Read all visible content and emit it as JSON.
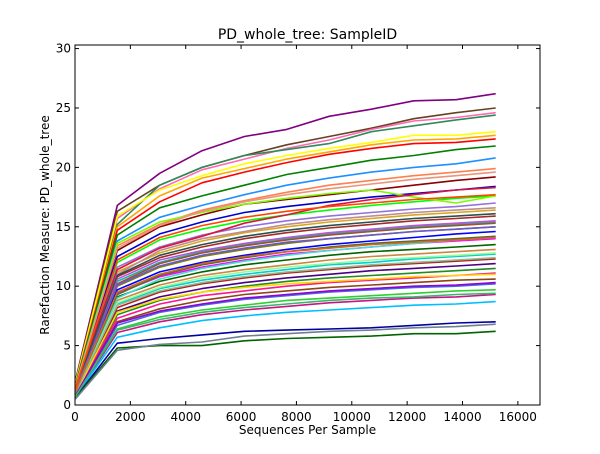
{
  "chart_data": {
    "type": "line",
    "title": "PD_whole_tree: SampleID",
    "xlabel": "Sequences Per Sample",
    "ylabel": "Rarefaction Measure: PD_whole_tree",
    "xlim": [
      0,
      16800
    ],
    "ylim": [
      0,
      30.3
    ],
    "xticks": [
      0,
      2000,
      4000,
      6000,
      8000,
      10000,
      12000,
      14000,
      16000
    ],
    "yticks": [
      0,
      5,
      10,
      15,
      20,
      25,
      30
    ],
    "grid": false,
    "legend": "none",
    "x": [
      10,
      1530,
      3060,
      4590,
      6120,
      7650,
      9180,
      10710,
      12240,
      13770,
      15200
    ],
    "series": [
      {
        "color": "#800080",
        "values": [
          2.0,
          16.8,
          19.5,
          21.4,
          22.6,
          23.2,
          24.3,
          24.9,
          25.6,
          25.7,
          26.2
        ]
      },
      {
        "color": "#654321",
        "values": [
          1.9,
          16.3,
          18.5,
          20.0,
          21.0,
          21.9,
          22.6,
          23.3,
          24.1,
          24.6,
          25.0
        ]
      },
      {
        "color": "#ff69b4",
        "values": [
          1.8,
          15.7,
          18.2,
          19.8,
          20.7,
          21.6,
          22.3,
          23.2,
          23.9,
          24.2,
          24.6
        ]
      },
      {
        "color": "#2e8b57",
        "values": [
          1.9,
          15.2,
          18.5,
          20.0,
          21.0,
          21.5,
          22.0,
          23.0,
          23.5,
          24.0,
          24.4
        ]
      },
      {
        "color": "#ffff00",
        "values": [
          1.8,
          15.9,
          18.1,
          19.3,
          20.3,
          21.0,
          21.6,
          22.1,
          22.7,
          22.7,
          23.0
        ]
      },
      {
        "color": "#ffa500",
        "values": [
          1.7,
          15.0,
          17.6,
          19.1,
          19.9,
          20.7,
          21.3,
          21.9,
          22.3,
          22.4,
          22.7
        ]
      },
      {
        "color": "#ff0000",
        "values": [
          1.6,
          14.7,
          17.1,
          18.7,
          19.6,
          20.4,
          21.1,
          21.6,
          22.0,
          22.1,
          22.4
        ]
      },
      {
        "color": "#008000",
        "values": [
          1.6,
          14.3,
          16.6,
          17.6,
          18.5,
          19.4,
          20.0,
          20.6,
          21.0,
          21.5,
          21.8
        ]
      },
      {
        "color": "#1e90ff",
        "values": [
          1.5,
          13.8,
          15.8,
          16.8,
          17.7,
          18.5,
          19.1,
          19.6,
          20.0,
          20.3,
          20.8
        ]
      },
      {
        "color": "#ff7f50",
        "values": [
          1.5,
          13.4,
          15.2,
          16.4,
          17.2,
          17.9,
          18.5,
          18.9,
          19.3,
          19.6,
          19.9
        ]
      },
      {
        "color": "#8b0000",
        "values": [
          1.4,
          13.0,
          15.0,
          16.0,
          16.9,
          17.3,
          17.7,
          18.1,
          18.5,
          18.9,
          19.2
        ]
      },
      {
        "color": "#0000cd",
        "values": [
          1.4,
          12.5,
          14.4,
          15.4,
          16.2,
          16.7,
          17.1,
          17.5,
          17.8,
          18.1,
          18.4
        ]
      },
      {
        "color": "#00ff00",
        "values": [
          1.4,
          12.0,
          13.9,
          14.8,
          15.5,
          16.0,
          16.4,
          16.8,
          17.1,
          17.4,
          17.6
        ]
      },
      {
        "color": "#9370db",
        "values": [
          1.3,
          11.6,
          13.3,
          14.3,
          15.0,
          15.5,
          15.9,
          16.2,
          16.5,
          16.7,
          17.0
        ]
      },
      {
        "color": "#daa520",
        "values": [
          1.3,
          11.2,
          12.8,
          13.8,
          14.5,
          15.0,
          15.4,
          15.7,
          16.0,
          16.2,
          16.4
        ]
      },
      {
        "color": "#a52a2a",
        "values": [
          1.2,
          10.8,
          12.4,
          13.3,
          14.0,
          14.5,
          14.9,
          15.2,
          15.5,
          15.7,
          15.9
        ]
      },
      {
        "color": "#20b2aa",
        "values": [
          1.2,
          10.4,
          12.0,
          12.9,
          13.5,
          14.0,
          14.4,
          14.7,
          15.0,
          15.2,
          15.4
        ]
      },
      {
        "color": "#808000",
        "values": [
          1.2,
          10.0,
          11.6,
          12.5,
          13.1,
          13.6,
          14.0,
          14.3,
          14.6,
          14.8,
          15.0
        ]
      },
      {
        "color": "#0000ff",
        "values": [
          1.1,
          9.7,
          11.2,
          12.0,
          12.6,
          13.1,
          13.5,
          13.8,
          14.1,
          14.4,
          14.6
        ]
      },
      {
        "color": "#ff00ff",
        "values": [
          1.1,
          9.4,
          10.8,
          11.6,
          12.2,
          12.7,
          13.0,
          13.3,
          13.6,
          13.8,
          14.0
        ]
      },
      {
        "color": "#006400",
        "values": [
          1.1,
          9.1,
          10.4,
          11.2,
          11.8,
          12.2,
          12.6,
          12.9,
          13.1,
          13.3,
          13.5
        ]
      },
      {
        "color": "#cd853f",
        "values": [
          1.0,
          8.8,
          10.1,
          10.9,
          11.4,
          11.8,
          12.2,
          12.5,
          12.7,
          12.9,
          13.1
        ]
      },
      {
        "color": "#00ced1",
        "values": [
          1.0,
          8.5,
          9.8,
          10.5,
          11.0,
          11.4,
          11.8,
          12.0,
          12.3,
          12.5,
          12.7
        ]
      },
      {
        "color": "#b22222",
        "values": [
          1.0,
          8.2,
          9.5,
          10.2,
          10.7,
          11.1,
          11.4,
          11.7,
          11.9,
          12.1,
          12.3
        ]
      },
      {
        "color": "#4b0082",
        "values": [
          0.9,
          7.9,
          9.1,
          9.8,
          10.3,
          10.7,
          11.0,
          11.3,
          11.5,
          11.7,
          11.9
        ]
      },
      {
        "color": "#228b22",
        "values": [
          0.9,
          7.6,
          8.8,
          9.5,
          10.0,
          10.4,
          10.7,
          10.9,
          11.1,
          11.3,
          11.5
        ]
      },
      {
        "color": "#ff1493",
        "values": [
          0.9,
          7.3,
          8.5,
          9.2,
          9.6,
          10.0,
          10.3,
          10.5,
          10.7,
          10.9,
          11.1
        ]
      },
      {
        "color": "#8b4513",
        "values": [
          0.8,
          7.0,
          8.1,
          8.8,
          9.3,
          9.6,
          9.9,
          10.1,
          10.3,
          10.5,
          10.6
        ]
      },
      {
        "color": "#4169e1",
        "values": [
          0.8,
          6.7,
          7.8,
          8.4,
          8.9,
          9.2,
          9.5,
          9.7,
          9.9,
          10.0,
          10.2
        ]
      },
      {
        "color": "#32cd32",
        "values": [
          0.8,
          6.4,
          7.4,
          8.0,
          8.4,
          8.8,
          9.0,
          9.2,
          9.4,
          9.6,
          9.7
        ]
      },
      {
        "color": "#c71585",
        "values": [
          0.7,
          6.1,
          7.0,
          7.6,
          8.0,
          8.3,
          8.6,
          8.8,
          9.0,
          9.1,
          9.3
        ]
      },
      {
        "color": "#00bfff",
        "values": [
          0.7,
          5.7,
          6.5,
          7.1,
          7.5,
          7.8,
          8.0,
          8.2,
          8.4,
          8.5,
          8.7
        ]
      },
      {
        "color": "#0000a0",
        "values": [
          0.6,
          5.2,
          5.6,
          5.9,
          6.2,
          6.3,
          6.4,
          6.5,
          6.7,
          6.9,
          7.0
        ]
      },
      {
        "color": "#006400",
        "values": [
          0.6,
          4.8,
          5.0,
          5.0,
          5.4,
          5.6,
          5.7,
          5.8,
          6.0,
          6.0,
          6.2
        ]
      },
      {
        "color": "#708090",
        "values": [
          0.5,
          4.6,
          5.1,
          5.3,
          5.8,
          6.0,
          6.2,
          6.3,
          6.5,
          6.6,
          6.8
        ]
      },
      {
        "color": "#bc8f8f",
        "values": [
          1.3,
          11.0,
          13.0,
          14.0,
          14.6,
          15.2,
          15.6,
          15.9,
          16.2,
          16.4,
          16.6
        ]
      },
      {
        "color": "#7cfc00",
        "values": [
          1.5,
          13.6,
          15.4,
          16.2,
          16.9,
          17.4,
          17.8,
          18.1,
          17.5,
          17.0,
          17.6
        ]
      },
      {
        "color": "#ba55d3",
        "values": [
          1.2,
          10.6,
          12.2,
          13.0,
          13.6,
          14.1,
          14.5,
          14.8,
          15.1,
          15.3,
          15.5
        ]
      },
      {
        "color": "#ffd700",
        "values": [
          0.9,
          7.8,
          8.9,
          9.5,
          9.9,
          10.2,
          10.4,
          10.6,
          10.8,
          10.9,
          11.0
        ]
      },
      {
        "color": "#40e0d0",
        "values": [
          1.1,
          9.0,
          10.6,
          11.5,
          12.1,
          12.6,
          13.0,
          13.3,
          13.6,
          13.9,
          14.1
        ]
      },
      {
        "color": "#a0522d",
        "values": [
          1.2,
          10.2,
          11.9,
          12.8,
          13.4,
          13.9,
          14.3,
          14.6,
          14.9,
          15.1,
          15.3
        ]
      },
      {
        "color": "#dc143c",
        "values": [
          1.4,
          11.4,
          13.2,
          14.2,
          15.3,
          16.0,
          16.8,
          17.3,
          17.7,
          18.1,
          18.3
        ]
      },
      {
        "color": "#2f4f4f",
        "values": [
          1.3,
          10.9,
          12.6,
          13.5,
          14.2,
          14.7,
          15.1,
          15.4,
          15.7,
          15.9,
          16.1
        ]
      },
      {
        "color": "#98fb98",
        "values": [
          1.0,
          8.6,
          9.9,
          10.7,
          11.2,
          11.6,
          11.9,
          12.2,
          12.4,
          12.6,
          12.8
        ]
      },
      {
        "color": "#e9967a",
        "values": [
          1.5,
          13.2,
          15.1,
          16.3,
          17.1,
          17.7,
          18.2,
          18.6,
          19.0,
          19.3,
          19.6
        ]
      },
      {
        "color": "#556b2f",
        "values": [
          1.1,
          9.3,
          10.9,
          11.8,
          12.4,
          12.9,
          13.3,
          13.6,
          13.8,
          14.0,
          14.2
        ]
      },
      {
        "color": "#6a5acd",
        "values": [
          1.2,
          10.1,
          11.7,
          12.6,
          13.2,
          13.7,
          14.0,
          14.3,
          14.6,
          14.8,
          15.0
        ]
      },
      {
        "color": "#ff4500",
        "values": [
          1.4,
          12.2,
          14.1,
          15.1,
          15.8,
          16.3,
          16.7,
          17.0,
          17.3,
          17.5,
          17.7
        ]
      },
      {
        "color": "#8fbc8f",
        "values": [
          1.0,
          8.4,
          9.6,
          10.3,
          10.8,
          11.2,
          11.5,
          11.8,
          12.0,
          12.2,
          12.4
        ]
      },
      {
        "color": "#d2691e",
        "values": [
          1.1,
          9.5,
          11.0,
          11.9,
          12.5,
          12.9,
          13.2,
          13.5,
          13.7,
          13.9,
          14.1
        ]
      },
      {
        "color": "#9400d3",
        "values": [
          0.8,
          6.9,
          7.9,
          8.5,
          9.0,
          9.3,
          9.6,
          9.8,
          10.0,
          10.1,
          10.3
        ]
      },
      {
        "color": "#3cb371",
        "values": [
          0.7,
          6.3,
          7.2,
          7.8,
          8.2,
          8.5,
          8.8,
          9.0,
          9.1,
          9.3,
          9.4
        ]
      }
    ]
  }
}
